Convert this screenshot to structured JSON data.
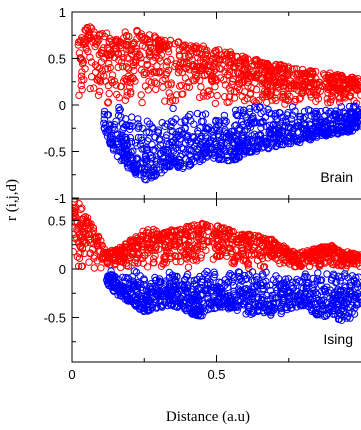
{
  "chart_data": [
    {
      "type": "scatter",
      "panel_label": "Brain",
      "ylim": [
        -1,
        1
      ],
      "xlim": [
        0,
        1
      ],
      "yticks": [
        "1",
        "0.5",
        "0",
        "-0.5",
        "-1"
      ],
      "yticks_values": [
        1,
        0.5,
        0,
        -0.5,
        -1
      ],
      "series": [
        {
          "color": "#ff0000",
          "x": [
            0.02,
            0.04,
            0.06,
            0.08,
            0.1,
            0.12,
            0.15,
            0.18,
            0.21,
            0.25,
            0.3,
            0.35,
            0.4,
            0.45,
            0.5,
            0.55,
            0.6,
            0.65,
            0.7,
            0.75,
            0.8,
            0.85,
            0.9,
            0.95,
            1.0
          ],
          "y": [
            0.98,
            0.9,
            0.85,
            0.8,
            0.8,
            0.78,
            0.75,
            0.78,
            0.82,
            0.8,
            0.72,
            0.7,
            0.66,
            0.65,
            0.6,
            0.58,
            0.52,
            0.48,
            0.45,
            0.42,
            0.38,
            0.36,
            0.34,
            0.32,
            0.28
          ]
        },
        {
          "color": "#0000ff",
          "x": [
            0.11,
            0.15,
            0.2,
            0.25,
            0.3,
            0.35,
            0.4,
            0.45,
            0.5,
            0.55,
            0.6,
            0.65,
            0.7,
            0.75,
            0.8,
            0.85,
            0.9,
            0.95,
            1.0
          ],
          "y": [
            -0.3,
            -0.55,
            -0.7,
            -0.82,
            -0.75,
            -0.65,
            -0.72,
            -0.6,
            -0.58,
            -0.62,
            -0.52,
            -0.5,
            -0.45,
            -0.42,
            -0.4,
            -0.35,
            -0.32,
            -0.3,
            -0.25
          ]
        }
      ]
    },
    {
      "type": "scatter",
      "panel_label": "Ising",
      "xlabel": "Distance (a.u)",
      "ylim": [
        -0.9,
        0.9
      ],
      "xlim": [
        0,
        1
      ],
      "yticks": [
        "0.5",
        "0",
        "-0.5"
      ],
      "yticks_values": [
        0.5,
        0,
        -0.5
      ],
      "xticks": [
        "0",
        "0.5"
      ],
      "xticks_values": [
        0,
        0.5
      ],
      "series": [
        {
          "color": "#ff0000",
          "x": [
            0.0,
            0.02,
            0.04,
            0.06,
            0.08,
            0.1,
            0.12,
            0.15,
            0.2,
            0.25,
            0.3,
            0.35,
            0.4,
            0.45,
            0.5,
            0.55,
            0.6,
            0.65,
            0.7,
            0.75,
            0.8,
            0.85,
            0.9,
            0.95,
            1.0
          ],
          "y": [
            0.78,
            0.7,
            0.6,
            0.5,
            0.4,
            0.3,
            0.18,
            0.2,
            0.3,
            0.4,
            0.42,
            0.4,
            0.44,
            0.48,
            0.45,
            0.4,
            0.36,
            0.35,
            0.3,
            0.2,
            0.18,
            0.22,
            0.25,
            0.18,
            0.15
          ]
        },
        {
          "color": "#0000ff",
          "x": [
            0.12,
            0.15,
            0.2,
            0.25,
            0.3,
            0.35,
            0.4,
            0.45,
            0.5,
            0.55,
            0.6,
            0.65,
            0.7,
            0.75,
            0.8,
            0.85,
            0.9,
            0.95,
            1.0
          ],
          "y": [
            -0.15,
            -0.25,
            -0.35,
            -0.45,
            -0.4,
            -0.38,
            -0.45,
            -0.5,
            -0.4,
            -0.42,
            -0.48,
            -0.45,
            -0.5,
            -0.42,
            -0.38,
            -0.48,
            -0.5,
            -0.55,
            -0.4
          ]
        }
      ]
    }
  ],
  "shared": {
    "ylabel": "r (i,j,d)"
  }
}
